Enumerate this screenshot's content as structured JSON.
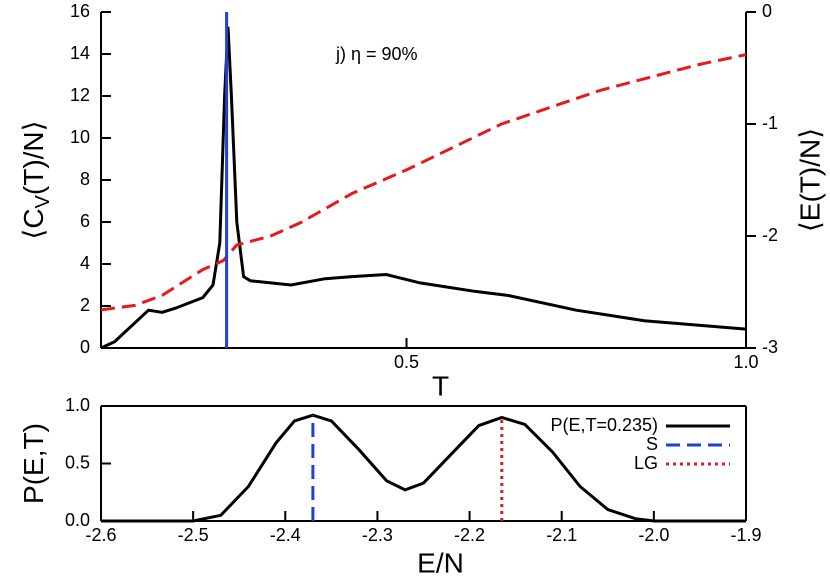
{
  "chart_data": [
    {
      "type": "line",
      "annotation": "j) η = 90%",
      "xlabel": "T",
      "ylabel": [
        "⟨C",
        "V",
        "(T)/N⟩"
      ],
      "y2label": "⟨E(T)/N⟩",
      "xlim": [
        0.05,
        1.0
      ],
      "xticks": [
        0.5,
        {
          "value": 1.0,
          "label": "1.0"
        }
      ],
      "ylim": [
        0,
        16
      ],
      "yticks": [
        0,
        2,
        4,
        6,
        8,
        10,
        12,
        14,
        16
      ],
      "y2lim": [
        -3,
        0
      ],
      "y2ticks": [
        -3,
        -2,
        -1,
        0
      ],
      "series": [
        {
          "color": "#000000",
          "dash": "solid",
          "x": [
            0.05,
            0.07,
            0.1,
            0.12,
            0.14,
            0.16,
            0.2,
            0.215,
            0.225,
            0.232,
            0.237,
            0.242,
            0.25,
            0.26,
            0.27,
            0.3,
            0.33,
            0.38,
            0.42,
            0.47,
            0.52,
            0.6,
            0.65,
            0.75,
            0.85,
            1.0
          ],
          "values": [
            0,
            0.3,
            1.2,
            1.8,
            1.7,
            1.9,
            2.4,
            3.0,
            5,
            12,
            15.3,
            12,
            6,
            3.4,
            3.2,
            3.1,
            3.0,
            3.3,
            3.4,
            3.5,
            3.1,
            2.7,
            2.5,
            1.8,
            1.3,
            0.9
          ]
        },
        {
          "color": "#e41a1c",
          "dash": "dashed",
          "axis": "y2",
          "x": [
            0.05,
            0.1,
            0.14,
            0.2,
            0.23,
            0.25,
            0.3,
            0.344,
            0.42,
            0.5,
            0.64,
            0.785,
            0.93,
            1.0
          ],
          "values": [
            -2.66,
            -2.62,
            -2.53,
            -2.3,
            -2.22,
            -2.08,
            -2.0,
            -1.88,
            -1.62,
            -1.41,
            -1.0,
            -0.7,
            -0.47,
            -0.38
          ]
        },
        {
          "color": "#1f3fd6",
          "dash": "solid",
          "x": [
            0.235,
            0.235
          ],
          "values": [
            0,
            16
          ]
        }
      ]
    },
    {
      "type": "line",
      "xlabel": "E/N",
      "ylabel": [
        "P(E,T)"
      ],
      "xlim": [
        -2.6,
        -1.9
      ],
      "xticks": [
        -2.6,
        -2.5,
        -2.4,
        -2.3,
        -2.2,
        -2.1,
        {
          "value": -2.0,
          "label": "-2.0"
        },
        -1.9
      ],
      "ylim": [
        0,
        1
      ],
      "yticks": [
        {
          "value": 0,
          "label": "0.0"
        },
        0.5,
        {
          "value": 1,
          "label": "1.0"
        }
      ],
      "legend": "upper right",
      "series": [
        {
          "name": "P(E,T=0.235)",
          "color": "#000000",
          "dash": "solid",
          "x": [
            -2.6,
            -2.5,
            -2.47,
            -2.44,
            -2.41,
            -2.39,
            -2.37,
            -2.35,
            -2.32,
            -2.29,
            -2.27,
            -2.25,
            -2.22,
            -2.19,
            -2.165,
            -2.14,
            -2.11,
            -2.08,
            -2.05,
            -2.02,
            -2.0,
            -1.9
          ],
          "values": [
            0,
            0,
            0.05,
            0.3,
            0.68,
            0.87,
            0.92,
            0.87,
            0.62,
            0.35,
            0.27,
            0.33,
            0.58,
            0.83,
            0.9,
            0.84,
            0.6,
            0.3,
            0.1,
            0.02,
            0,
            0
          ]
        },
        {
          "name": "S",
          "color": "#1f3fd6",
          "dash": "dashed",
          "x": [
            -2.37,
            -2.37
          ],
          "values": [
            0,
            0.92
          ]
        },
        {
          "name": "LG",
          "color": "#e41a1c",
          "dash": "dotted",
          "x": [
            -2.165,
            -2.165
          ],
          "values": [
            0,
            0.9
          ]
        }
      ]
    }
  ]
}
